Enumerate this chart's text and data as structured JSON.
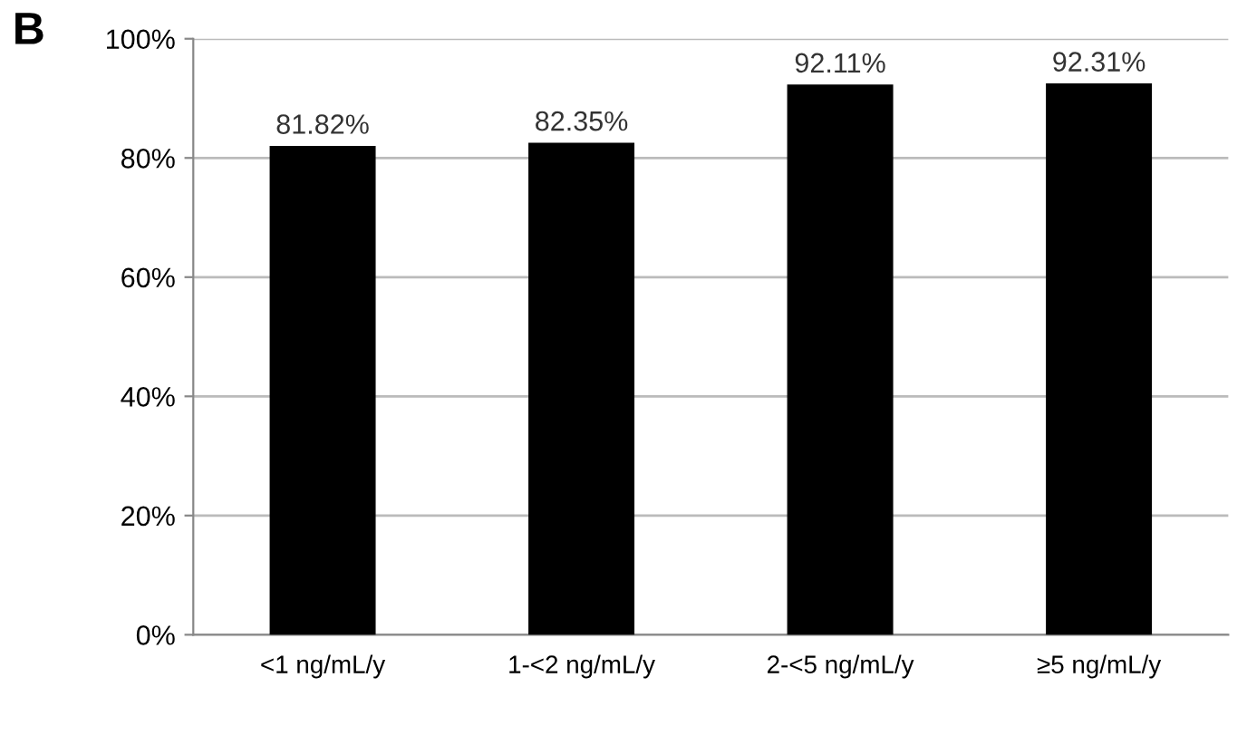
{
  "chart_data": {
    "type": "bar",
    "title": "B",
    "categories": [
      "<1 ng/mL/y",
      "1-<2 ng/mL/y",
      "2-<5 ng/mL/y",
      "≥5 ng/mL/y"
    ],
    "values": [
      81.82,
      82.35,
      92.11,
      92.31
    ],
    "value_labels": [
      "81.82%",
      "82.35%",
      "92.11%",
      "92.31%"
    ],
    "color": "#000000",
    "ylim": [
      0,
      100
    ],
    "yticks": [
      {
        "value": 0,
        "label": "0%"
      },
      {
        "value": 20,
        "label": "20%"
      },
      {
        "value": 40,
        "label": "40%"
      },
      {
        "value": 60,
        "label": "60%"
      },
      {
        "value": 80,
        "label": "80%"
      },
      {
        "value": 100,
        "label": "100%"
      }
    ],
    "grid": "y"
  }
}
